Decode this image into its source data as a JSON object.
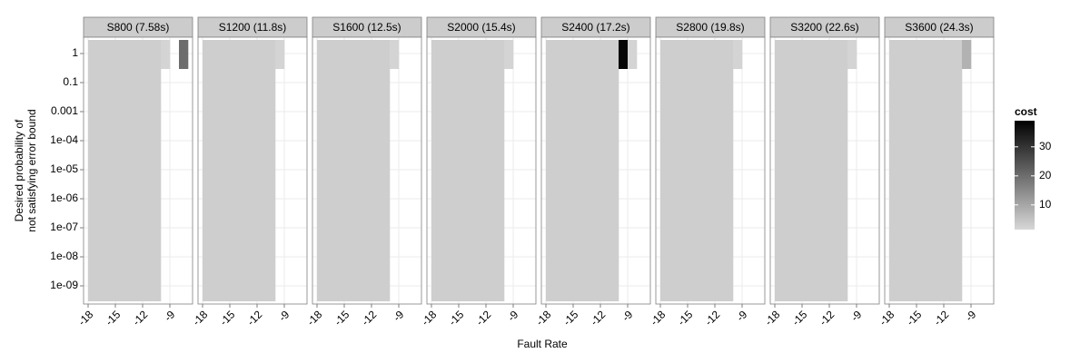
{
  "chart_data": {
    "type": "heatmap",
    "xlabel": "Fault Rate",
    "ylabel": [
      "Desired probability of",
      "not satisfying error bound"
    ],
    "x": [
      -18,
      -17,
      -16,
      -15,
      -14,
      -13,
      -12,
      -11,
      -10,
      -9,
      -8
    ],
    "categories": [
      "1",
      "0.1",
      "0.001",
      "1e-04",
      "1e-05",
      "1e-06",
      "1e-07",
      "1e-08",
      "1e-09"
    ],
    "xlim": [
      -18.5,
      -6.5
    ],
    "xticks": [
      -18,
      -15,
      -12,
      -9
    ],
    "grid": true,
    "legend": {
      "title": "cost",
      "lim": [
        1.5,
        39
      ],
      "ticks": [
        10,
        20,
        30
      ],
      "low_color": "#d7d7d7",
      "high_color": "#000000",
      "position": "right"
    },
    "facets": [
      {
        "title": "S800 (7.58s)",
        "cost": [
          [
            3,
            3,
            3,
            3,
            3,
            3,
            3,
            3,
            2,
            null,
            20
          ],
          [
            3,
            3,
            3,
            3,
            3,
            3,
            3,
            3,
            null,
            null,
            null
          ],
          [
            3,
            3,
            3,
            3,
            3,
            3,
            3,
            3,
            null,
            null,
            null
          ],
          [
            3,
            3,
            3,
            3,
            3,
            3,
            3,
            3,
            null,
            null,
            null
          ],
          [
            3,
            3,
            3,
            3,
            3,
            3,
            3,
            3,
            null,
            null,
            null
          ],
          [
            3,
            3,
            3,
            3,
            3,
            3,
            3,
            3,
            null,
            null,
            null
          ],
          [
            3,
            3,
            3,
            3,
            3,
            3,
            3,
            3,
            null,
            null,
            null
          ],
          [
            3,
            3,
            3,
            3,
            3,
            3,
            3,
            3,
            null,
            null,
            null
          ],
          [
            3,
            3,
            3,
            3,
            3,
            3,
            3,
            3,
            null,
            null,
            null
          ]
        ]
      },
      {
        "title": "S1200 (11.8s)",
        "cost": [
          [
            3,
            3,
            3,
            3,
            3,
            3,
            3,
            3,
            2,
            null,
            null
          ],
          [
            3,
            3,
            3,
            3,
            3,
            3,
            3,
            3,
            null,
            null,
            null
          ],
          [
            3,
            3,
            3,
            3,
            3,
            3,
            3,
            3,
            null,
            null,
            null
          ],
          [
            3,
            3,
            3,
            3,
            3,
            3,
            3,
            3,
            null,
            null,
            null
          ],
          [
            3,
            3,
            3,
            3,
            3,
            3,
            3,
            3,
            null,
            null,
            null
          ],
          [
            3,
            3,
            3,
            3,
            3,
            3,
            3,
            3,
            null,
            null,
            null
          ],
          [
            3,
            3,
            3,
            3,
            3,
            3,
            3,
            3,
            null,
            null,
            null
          ],
          [
            3,
            3,
            3,
            3,
            3,
            3,
            3,
            3,
            null,
            null,
            null
          ],
          [
            3,
            3,
            3,
            3,
            3,
            3,
            3,
            3,
            null,
            null,
            null
          ]
        ]
      },
      {
        "title": "S1600 (12.5s)",
        "cost": [
          [
            3,
            3,
            3,
            3,
            3,
            3,
            3,
            3,
            2,
            null,
            null
          ],
          [
            3,
            3,
            3,
            3,
            3,
            3,
            3,
            3,
            null,
            null,
            null
          ],
          [
            3,
            3,
            3,
            3,
            3,
            3,
            3,
            3,
            null,
            null,
            null
          ],
          [
            3,
            3,
            3,
            3,
            3,
            3,
            3,
            3,
            null,
            null,
            null
          ],
          [
            3,
            3,
            3,
            3,
            3,
            3,
            3,
            3,
            null,
            null,
            null
          ],
          [
            3,
            3,
            3,
            3,
            3,
            3,
            3,
            3,
            null,
            null,
            null
          ],
          [
            3,
            3,
            3,
            3,
            3,
            3,
            3,
            3,
            null,
            null,
            null
          ],
          [
            3,
            3,
            3,
            3,
            3,
            3,
            3,
            3,
            null,
            null,
            null
          ],
          [
            3,
            3,
            3,
            3,
            3,
            3,
            3,
            3,
            null,
            null,
            null
          ]
        ]
      },
      {
        "title": "S2000 (15.4s)",
        "cost": [
          [
            3,
            3,
            3,
            3,
            3,
            3,
            3,
            3,
            2,
            null,
            null
          ],
          [
            3,
            3,
            3,
            3,
            3,
            3,
            3,
            3,
            null,
            null,
            null
          ],
          [
            3,
            3,
            3,
            3,
            3,
            3,
            3,
            3,
            null,
            null,
            null
          ],
          [
            3,
            3,
            3,
            3,
            3,
            3,
            3,
            3,
            null,
            null,
            null
          ],
          [
            3,
            3,
            3,
            3,
            3,
            3,
            3,
            3,
            null,
            null,
            null
          ],
          [
            3,
            3,
            3,
            3,
            3,
            3,
            3,
            3,
            null,
            null,
            null
          ],
          [
            3,
            3,
            3,
            3,
            3,
            3,
            3,
            3,
            null,
            null,
            null
          ],
          [
            3,
            3,
            3,
            3,
            3,
            3,
            3,
            3,
            null,
            null,
            null
          ],
          [
            3,
            3,
            3,
            3,
            3,
            3,
            3,
            3,
            null,
            null,
            null
          ]
        ]
      },
      {
        "title": "S2400 (17.2s)",
        "cost": [
          [
            3,
            3,
            3,
            3,
            3,
            3,
            3,
            3,
            38,
            2,
            null
          ],
          [
            3,
            3,
            3,
            3,
            3,
            3,
            3,
            3,
            null,
            null,
            null
          ],
          [
            3,
            3,
            3,
            3,
            3,
            3,
            3,
            3,
            null,
            null,
            null
          ],
          [
            3,
            3,
            3,
            3,
            3,
            3,
            3,
            3,
            null,
            null,
            null
          ],
          [
            3,
            3,
            3,
            3,
            3,
            3,
            3,
            3,
            null,
            null,
            null
          ],
          [
            3,
            3,
            3,
            3,
            3,
            3,
            3,
            3,
            null,
            null,
            null
          ],
          [
            3,
            3,
            3,
            3,
            3,
            3,
            3,
            3,
            null,
            null,
            null
          ],
          [
            3,
            3,
            3,
            3,
            3,
            3,
            3,
            3,
            null,
            null,
            null
          ],
          [
            3,
            3,
            3,
            3,
            3,
            3,
            3,
            3,
            null,
            null,
            null
          ]
        ]
      },
      {
        "title": "S2800 (19.8s)",
        "cost": [
          [
            3,
            3,
            3,
            3,
            3,
            3,
            3,
            3,
            2,
            null,
            null
          ],
          [
            3,
            3,
            3,
            3,
            3,
            3,
            3,
            3,
            null,
            null,
            null
          ],
          [
            3,
            3,
            3,
            3,
            3,
            3,
            3,
            3,
            null,
            null,
            null
          ],
          [
            3,
            3,
            3,
            3,
            3,
            3,
            3,
            3,
            null,
            null,
            null
          ],
          [
            3,
            3,
            3,
            3,
            3,
            3,
            3,
            3,
            null,
            null,
            null
          ],
          [
            3,
            3,
            3,
            3,
            3,
            3,
            3,
            3,
            null,
            null,
            null
          ],
          [
            3,
            3,
            3,
            3,
            3,
            3,
            3,
            3,
            null,
            null,
            null
          ],
          [
            3,
            3,
            3,
            3,
            3,
            3,
            3,
            3,
            null,
            null,
            null
          ],
          [
            3,
            3,
            3,
            3,
            3,
            3,
            3,
            3,
            null,
            null,
            null
          ]
        ]
      },
      {
        "title": "S3200 (22.6s)",
        "cost": [
          [
            3,
            3,
            3,
            3,
            3,
            3,
            3,
            3,
            2,
            null,
            null
          ],
          [
            3,
            3,
            3,
            3,
            3,
            3,
            3,
            3,
            null,
            null,
            null
          ],
          [
            3,
            3,
            3,
            3,
            3,
            3,
            3,
            3,
            null,
            null,
            null
          ],
          [
            3,
            3,
            3,
            3,
            3,
            3,
            3,
            3,
            null,
            null,
            null
          ],
          [
            3,
            3,
            3,
            3,
            3,
            3,
            3,
            3,
            null,
            null,
            null
          ],
          [
            3,
            3,
            3,
            3,
            3,
            3,
            3,
            3,
            null,
            null,
            null
          ],
          [
            3,
            3,
            3,
            3,
            3,
            3,
            3,
            3,
            null,
            null,
            null
          ],
          [
            3,
            3,
            3,
            3,
            3,
            3,
            3,
            3,
            null,
            null,
            null
          ],
          [
            3,
            3,
            3,
            3,
            3,
            3,
            3,
            3,
            null,
            null,
            null
          ]
        ]
      },
      {
        "title": "S3600 (24.3s)",
        "cost": [
          [
            3,
            3,
            3,
            3,
            3,
            3,
            3,
            3,
            8,
            null,
            null
          ],
          [
            3,
            3,
            3,
            3,
            3,
            3,
            3,
            3,
            null,
            null,
            null
          ],
          [
            3,
            3,
            3,
            3,
            3,
            3,
            3,
            3,
            null,
            null,
            null
          ],
          [
            3,
            3,
            3,
            3,
            3,
            3,
            3,
            3,
            null,
            null,
            null
          ],
          [
            3,
            3,
            3,
            3,
            3,
            3,
            3,
            3,
            null,
            null,
            null
          ],
          [
            3,
            3,
            3,
            3,
            3,
            3,
            3,
            3,
            null,
            null,
            null
          ],
          [
            3,
            3,
            3,
            3,
            3,
            3,
            3,
            3,
            null,
            null,
            null
          ],
          [
            3,
            3,
            3,
            3,
            3,
            3,
            3,
            3,
            null,
            null,
            null
          ],
          [
            3,
            3,
            3,
            3,
            3,
            3,
            3,
            3,
            null,
            null,
            null
          ]
        ]
      }
    ]
  }
}
